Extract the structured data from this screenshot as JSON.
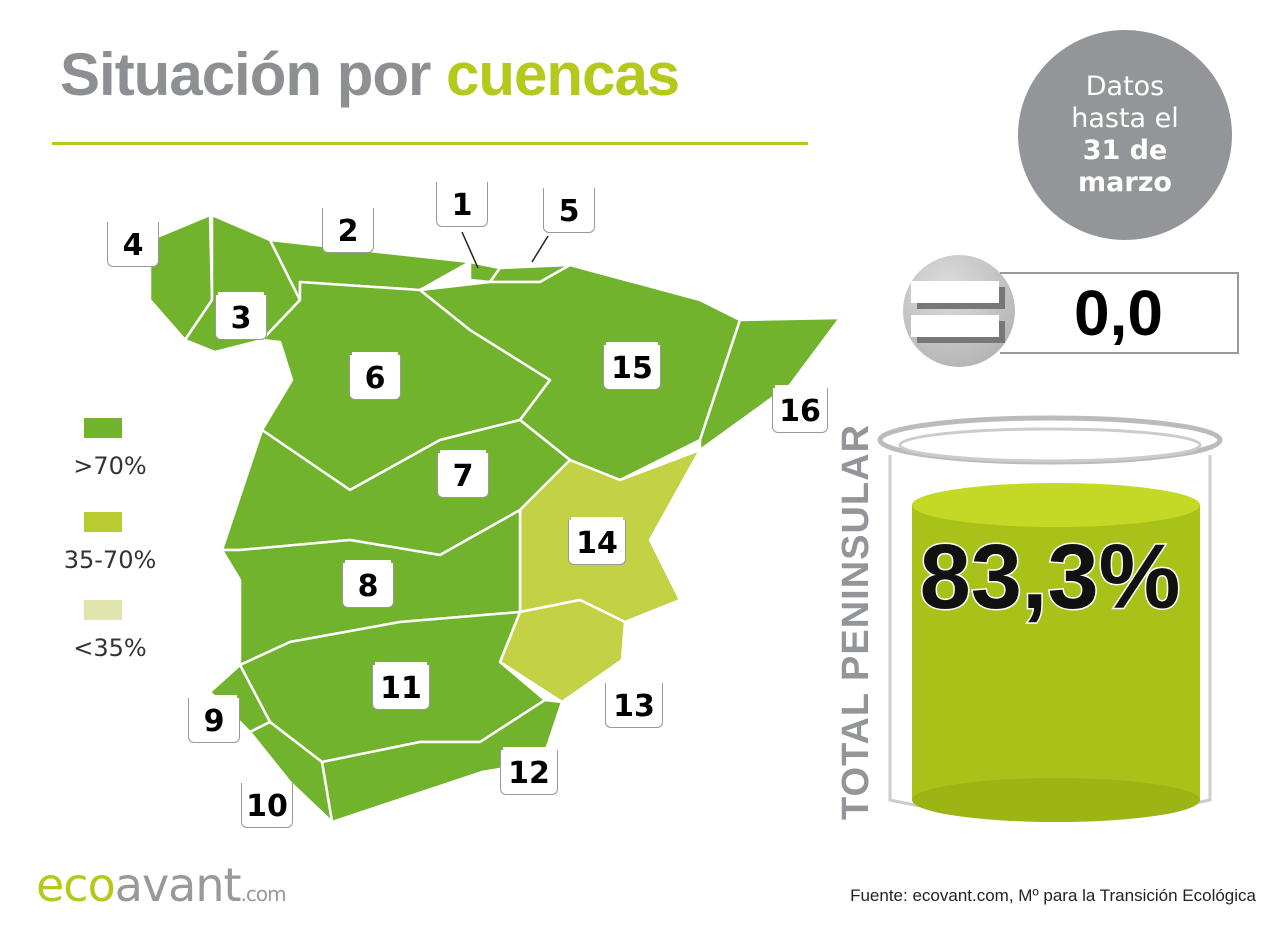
{
  "title": {
    "part1": "Situación por",
    "part2": "cuencas"
  },
  "date_badge": {
    "line1": "Datos",
    "line2": "hasta el",
    "line3": "31 de",
    "line4": "marzo"
  },
  "change": {
    "icon": "equals-icon",
    "value": "0,0"
  },
  "total": {
    "label": "TOTAL PENINSULAR",
    "value": "83,3%",
    "fill_percent": 83.3
  },
  "legend": [
    {
      "label": ">70%",
      "color": "#72b32d"
    },
    {
      "label": "35-70%",
      "color": "#b8cc32"
    },
    {
      "label": "<35%",
      "color": "#dfe4ad"
    }
  ],
  "basins": [
    {
      "id": "1",
      "color": "#72b32d"
    },
    {
      "id": "2",
      "color": "#72b32d"
    },
    {
      "id": "3",
      "color": "#72b32d"
    },
    {
      "id": "4",
      "color": "#72b32d"
    },
    {
      "id": "5",
      "color": "#72b32d"
    },
    {
      "id": "6",
      "color": "#72b32d"
    },
    {
      "id": "7",
      "color": "#72b32d"
    },
    {
      "id": "8",
      "color": "#72b32d"
    },
    {
      "id": "9",
      "color": "#72b32d"
    },
    {
      "id": "10",
      "color": "#72b32d"
    },
    {
      "id": "11",
      "color": "#72b32d"
    },
    {
      "id": "12",
      "color": "#72b32d"
    },
    {
      "id": "13",
      "color": "#c3d244"
    },
    {
      "id": "14",
      "color": "#c3d244"
    },
    {
      "id": "15",
      "color": "#72b32d"
    },
    {
      "id": "16",
      "color": "#72b32d"
    }
  ],
  "logo": {
    "brand": "eco",
    "brand2": "avant",
    "suffix": ".com"
  },
  "source": "Fuente: ecovant.com, Mº para la Transición Ecológica"
}
